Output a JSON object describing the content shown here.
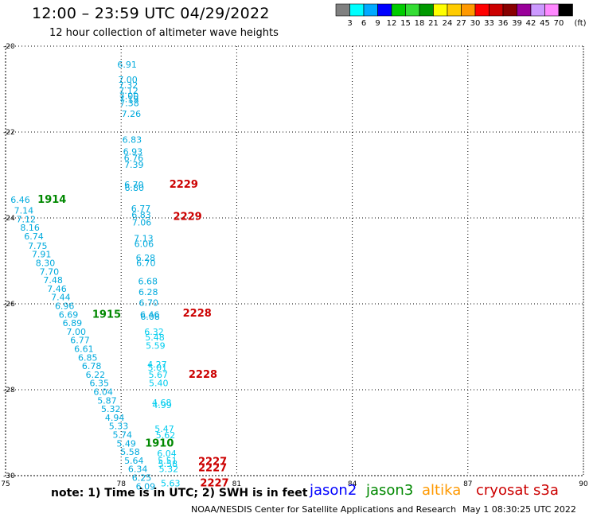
{
  "header": {
    "title": "12:00 – 23:59 UTC 04/29/2022",
    "subtitle": "12 hour collection of altimeter wave heights"
  },
  "colorbar": {
    "unit": "(ft)",
    "colors": [
      "#808080",
      "#00ffff",
      "#00aaff",
      "#0000ff",
      "#00cc00",
      "#33dd33",
      "#009900",
      "#ffff00",
      "#ffcc00",
      "#ff9900",
      "#ff0000",
      "#cc0000",
      "#880000",
      "#990099",
      "#cc99ff",
      "#ff88ff",
      "#000000"
    ],
    "labels": [
      "3",
      "6",
      "9",
      "12",
      "15",
      "18",
      "21",
      "24",
      "27",
      "30",
      "33",
      "36",
      "39",
      "42",
      "45",
      "70"
    ]
  },
  "footer": {
    "note": "note: 1) Time is in UTC; 2) SWH is in feet",
    "credit": "NOAA/NESDIS Center for Satellite Applications and Research",
    "generated": "May  1 08:30:25 UTC 2022"
  },
  "satellites": [
    {
      "name": "jason2",
      "color": "#0000ff"
    },
    {
      "name": "jason3",
      "color": "#008800"
    },
    {
      "name": "altika",
      "color": "#ff9900"
    },
    {
      "name": "cryosat",
      "color": "#cc0000"
    },
    {
      "name": "s3a",
      "color": "#cc0000"
    }
  ],
  "chart_data": {
    "type": "scatter",
    "xlim": [
      75,
      90
    ],
    "ylim": [
      -30,
      -20
    ],
    "xticks": [
      75,
      78,
      81,
      84,
      87,
      90
    ],
    "yticks": [
      -20,
      -22,
      -24,
      -26,
      -28,
      -30
    ],
    "xtick_labels": [
      "75",
      "78",
      "81",
      "84",
      "87",
      "90"
    ],
    "ytick_labels": [
      "-20",
      "-22",
      "-24",
      "-26",
      "-28",
      "-30"
    ],
    "grid": true,
    "point_color": "#00aadd",
    "point_color_light": "#00ccee",
    "series": [
      {
        "points": [
          {
            "x": 77.9,
            "y": -20.5,
            "v": "6.91"
          },
          {
            "x": 77.92,
            "y": -20.85,
            "v": "7.00"
          },
          {
            "x": 77.93,
            "y": -20.98,
            "v": "7.32"
          },
          {
            "x": 77.94,
            "y": -21.11,
            "v": "7.12"
          },
          {
            "x": 77.95,
            "y": -21.23,
            "v": "7.00"
          },
          {
            "x": 77.95,
            "y": -21.31,
            "v": "7.19"
          },
          {
            "x": 77.96,
            "y": -21.4,
            "v": "7.38"
          },
          {
            "x": 78.01,
            "y": -21.65,
            "v": "7.26"
          },
          {
            "x": 78.03,
            "y": -22.25,
            "v": "6.83"
          },
          {
            "x": 78.05,
            "y": -22.53,
            "v": "6.93"
          },
          {
            "x": 78.07,
            "y": -22.68,
            "v": "6.76"
          },
          {
            "x": 78.08,
            "y": -22.83,
            "v": "7.39"
          },
          {
            "x": 78.08,
            "y": -23.3,
            "v": "6.70"
          },
          {
            "x": 78.09,
            "y": -23.37,
            "v": "6.80"
          },
          {
            "x": 78.26,
            "y": -23.85,
            "v": "6.77"
          },
          {
            "x": 78.27,
            "y": -24.0,
            "v": "6.83"
          },
          {
            "x": 78.28,
            "y": -24.18,
            "v": "7.06"
          },
          {
            "x": 78.33,
            "y": -24.55,
            "v": "7.13"
          },
          {
            "x": 78.34,
            "y": -24.68,
            "v": "6.06"
          },
          {
            "x": 78.38,
            "y": -25.0,
            "v": "6.28"
          },
          {
            "x": 78.39,
            "y": -25.12,
            "v": "6.70"
          },
          {
            "x": 78.44,
            "y": -25.55,
            "v": "6.68"
          },
          {
            "x": 78.45,
            "y": -25.8,
            "v": "6.28"
          },
          {
            "x": 78.46,
            "y": -26.05,
            "v": "6.70"
          },
          {
            "x": 78.49,
            "y": -26.32,
            "v": "6.46"
          },
          {
            "x": 78.5,
            "y": -26.37,
            "v": "6.08"
          }
        ]
      },
      {
        "points": [
          {
            "x": 75.13,
            "y": -23.65,
            "v": "6.46"
          },
          {
            "x": 75.22,
            "y": -23.9,
            "v": "7.14"
          },
          {
            "x": 75.28,
            "y": -24.1,
            "v": "7.12"
          },
          {
            "x": 75.38,
            "y": -24.3,
            "v": "8.16"
          },
          {
            "x": 75.48,
            "y": -24.5,
            "v": "6.74"
          },
          {
            "x": 75.58,
            "y": -24.72,
            "v": "7.75"
          },
          {
            "x": 75.68,
            "y": -24.92,
            "v": "7.91"
          },
          {
            "x": 75.78,
            "y": -25.12,
            "v": "8.30"
          },
          {
            "x": 75.88,
            "y": -25.32,
            "v": "7.70"
          },
          {
            "x": 75.98,
            "y": -25.52,
            "v": "7.48"
          },
          {
            "x": 76.08,
            "y": -25.72,
            "v": "7.46"
          },
          {
            "x": 76.18,
            "y": -25.92,
            "v": "7.44"
          },
          {
            "x": 76.28,
            "y": -26.12,
            "v": "6.96"
          },
          {
            "x": 76.38,
            "y": -26.32,
            "v": "6.69"
          },
          {
            "x": 76.48,
            "y": -26.52,
            "v": "6.89"
          },
          {
            "x": 76.58,
            "y": -26.72,
            "v": "7.00"
          },
          {
            "x": 76.68,
            "y": -26.92,
            "v": "6.77"
          },
          {
            "x": 76.78,
            "y": -27.12,
            "v": "6.61"
          },
          {
            "x": 76.88,
            "y": -27.32,
            "v": "6.85"
          },
          {
            "x": 76.98,
            "y": -27.52,
            "v": "6.78"
          },
          {
            "x": 77.08,
            "y": -27.72,
            "v": "6.22"
          },
          {
            "x": 77.18,
            "y": -27.92,
            "v": "6.35"
          },
          {
            "x": 77.28,
            "y": -28.12,
            "v": "6.04"
          },
          {
            "x": 77.38,
            "y": -28.32,
            "v": "5.87"
          },
          {
            "x": 77.48,
            "y": -28.52,
            "v": "5.32"
          },
          {
            "x": 77.58,
            "y": -28.72,
            "v": "4.94"
          },
          {
            "x": 77.68,
            "y": -28.92,
            "v": "5.33"
          },
          {
            "x": 77.78,
            "y": -29.12,
            "v": "5.74"
          },
          {
            "x": 77.88,
            "y": -29.32,
            "v": "5.49"
          },
          {
            "x": 77.98,
            "y": -29.52,
            "v": "5.58"
          },
          {
            "x": 78.08,
            "y": -29.72,
            "v": "5.64"
          },
          {
            "x": 78.18,
            "y": -29.92,
            "v": "6.34"
          },
          {
            "x": 78.28,
            "y": -30.12,
            "v": "6.25"
          },
          {
            "x": 78.38,
            "y": -30.32,
            "v": "6.09"
          }
        ]
      },
      {
        "points": [
          {
            "x": 78.6,
            "y": -26.72,
            "v": "6.32"
          },
          {
            "x": 78.62,
            "y": -26.85,
            "v": "5.48"
          },
          {
            "x": 78.64,
            "y": -27.05,
            "v": "5.59"
          },
          {
            "x": 78.68,
            "y": -27.48,
            "v": "4.27"
          },
          {
            "x": 78.69,
            "y": -27.56,
            "v": "5.01"
          },
          {
            "x": 78.71,
            "y": -27.72,
            "v": "5.67"
          },
          {
            "x": 78.72,
            "y": -27.92,
            "v": "5.40"
          },
          {
            "x": 78.8,
            "y": -28.37,
            "v": "4.68"
          },
          {
            "x": 78.81,
            "y": -28.43,
            "v": "4.99"
          },
          {
            "x": 78.87,
            "y": -28.98,
            "v": "5.47"
          },
          {
            "x": 78.9,
            "y": -29.13,
            "v": "5.62"
          },
          {
            "x": 78.93,
            "y": -29.56,
            "v": "6.04"
          },
          {
            "x": 78.95,
            "y": -29.72,
            "v": "5.51"
          },
          {
            "x": 78.96,
            "y": -29.8,
            "v": "5.58"
          },
          {
            "x": 78.98,
            "y": -29.92,
            "v": "5.32"
          },
          {
            "x": 79.03,
            "y": -30.25,
            "v": "5.63"
          }
        ]
      }
    ],
    "pass_labels": [
      {
        "x": 75.83,
        "y": -23.65,
        "v": "1914",
        "color": "#008800"
      },
      {
        "x": 77.25,
        "y": -26.32,
        "v": "1915",
        "color": "#008800"
      },
      {
        "x": 78.62,
        "y": -29.32,
        "v": "1910",
        "color": "#008800"
      },
      {
        "x": 79.25,
        "y": -23.3,
        "v": "2229",
        "color": "#cc0000"
      },
      {
        "x": 79.35,
        "y": -24.05,
        "v": "2229",
        "color": "#cc0000"
      },
      {
        "x": 79.6,
        "y": -26.3,
        "v": "2228",
        "color": "#cc0000"
      },
      {
        "x": 79.75,
        "y": -27.72,
        "v": "2228",
        "color": "#cc0000"
      },
      {
        "x": 80.0,
        "y": -29.75,
        "v": "2227",
        "color": "#cc0000"
      },
      {
        "x": 80.0,
        "y": -29.9,
        "v": "2227",
        "color": "#cc0000"
      },
      {
        "x": 80.05,
        "y": -30.25,
        "v": "2227",
        "color": "#cc0000"
      }
    ]
  }
}
